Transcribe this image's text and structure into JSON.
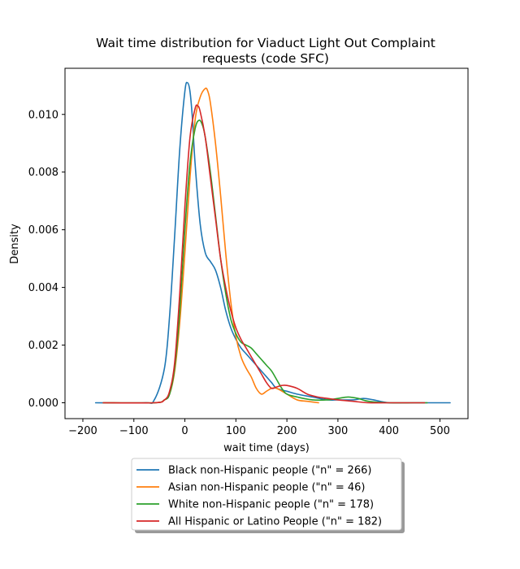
{
  "chart_data": {
    "type": "line",
    "title": "Wait time distribution  for Viaduct Light Out Complaint requests (code SFC)",
    "title_lines": [
      "Wait time distribution  for Viaduct Light Out Complaint",
      "requests (code SFC)"
    ],
    "xlabel": "wait time (days)",
    "ylabel": "Density",
    "xlim": [
      -235,
      555
    ],
    "ylim": [
      -0.00055,
      0.0116
    ],
    "xticks": [
      -200,
      -100,
      0,
      100,
      200,
      300,
      400,
      500
    ],
    "xtick_labels": [
      "−200",
      "−100",
      "0",
      "100",
      "200",
      "300",
      "400",
      "500"
    ],
    "yticks": [
      0.0,
      0.002,
      0.004,
      0.006,
      0.008,
      0.01
    ],
    "ytick_labels": [
      "0.000",
      "0.002",
      "0.004",
      "0.006",
      "0.008",
      "0.010"
    ],
    "grid": false,
    "legend_placement": "bottom-center, below plot",
    "series": [
      {
        "name": "Black non-Hispanic people (\"n\" = 266)",
        "color": "#1f77b4",
        "x": [
          -175,
          -80,
          -60,
          -40,
          -30,
          -20,
          -10,
          0,
          5,
          10,
          15,
          20,
          30,
          40,
          50,
          60,
          70,
          80,
          90,
          100,
          110,
          120,
          130,
          140,
          150,
          160,
          170,
          180,
          200,
          220,
          250,
          280,
          300,
          330,
          350,
          370,
          400,
          450,
          520
        ],
        "y": [
          0.0,
          0.0,
          0.0001,
          0.0012,
          0.003,
          0.0058,
          0.0088,
          0.0108,
          0.0111,
          0.0108,
          0.0098,
          0.0083,
          0.0062,
          0.0052,
          0.0049,
          0.0046,
          0.004,
          0.0032,
          0.0026,
          0.0022,
          0.0019,
          0.0017,
          0.0015,
          0.0013,
          0.0011,
          0.0009,
          0.0007,
          0.0005,
          0.0004,
          0.0003,
          0.0002,
          0.0001,
          0.0001,
          0.0001,
          0.00015,
          0.0001,
          0.0,
          0.0,
          0.0
        ]
      },
      {
        "name": "Asian non-Hispanic people (\"n\" = 46)",
        "color": "#ff7f0e",
        "x": [
          -160,
          -60,
          -40,
          -30,
          -20,
          -10,
          0,
          10,
          20,
          30,
          40,
          45,
          50,
          60,
          70,
          80,
          90,
          100,
          110,
          120,
          130,
          140,
          150,
          160,
          170,
          180,
          200,
          220,
          240,
          262
        ],
        "y": [
          0.0,
          0.0,
          0.0001,
          0.0003,
          0.0011,
          0.0028,
          0.0052,
          0.0078,
          0.0098,
          0.0106,
          0.0109,
          0.0108,
          0.0104,
          0.009,
          0.0072,
          0.0052,
          0.0035,
          0.0023,
          0.0016,
          0.0012,
          0.0009,
          0.0005,
          0.0003,
          0.0004,
          0.0005,
          0.0005,
          0.0003,
          0.0001,
          5e-05,
          0.0
        ]
      },
      {
        "name": "White non-Hispanic people (\"n\" = 178)",
        "color": "#2ca02c",
        "x": [
          -160,
          -60,
          -40,
          -30,
          -20,
          -10,
          0,
          10,
          20,
          28,
          35,
          40,
          50,
          60,
          70,
          80,
          90,
          100,
          110,
          120,
          130,
          140,
          150,
          160,
          170,
          180,
          190,
          200,
          220,
          250,
          280,
          300,
          320,
          340,
          360,
          400,
          450,
          475
        ],
        "y": [
          0.0,
          0.0,
          0.0001,
          0.0003,
          0.0012,
          0.0032,
          0.006,
          0.0083,
          0.0095,
          0.0098,
          0.0096,
          0.0092,
          0.008,
          0.0065,
          0.005,
          0.0038,
          0.0029,
          0.0024,
          0.0021,
          0.002,
          0.0019,
          0.0017,
          0.0015,
          0.0013,
          0.0011,
          0.0008,
          0.0005,
          0.0003,
          0.0002,
          0.0001,
          0.0001,
          0.00015,
          0.0002,
          0.00015,
          5e-05,
          0.0,
          0.0,
          0.0
        ]
      },
      {
        "name": "All Hispanic or Latino People (\"n\" = 182)",
        "color": "#d62728",
        "x": [
          -160,
          -60,
          -40,
          -30,
          -20,
          -10,
          0,
          10,
          20,
          25,
          30,
          40,
          50,
          60,
          70,
          80,
          90,
          100,
          110,
          120,
          130,
          140,
          150,
          160,
          170,
          180,
          190,
          200,
          220,
          240,
          260,
          280,
          300,
          330,
          360,
          400,
          450,
          470
        ],
        "y": [
          0.0,
          0.0,
          0.0001,
          0.0004,
          0.0014,
          0.0038,
          0.0068,
          0.0092,
          0.0102,
          0.0103,
          0.0101,
          0.0092,
          0.0078,
          0.0064,
          0.005,
          0.004,
          0.0032,
          0.0026,
          0.0022,
          0.0019,
          0.0016,
          0.0013,
          0.001,
          0.0007,
          0.0005,
          0.00055,
          0.0006,
          0.0006,
          0.0005,
          0.0003,
          0.0002,
          0.00015,
          0.0001,
          5e-05,
          0.0,
          0.0,
          0.0,
          0.0
        ]
      }
    ]
  }
}
